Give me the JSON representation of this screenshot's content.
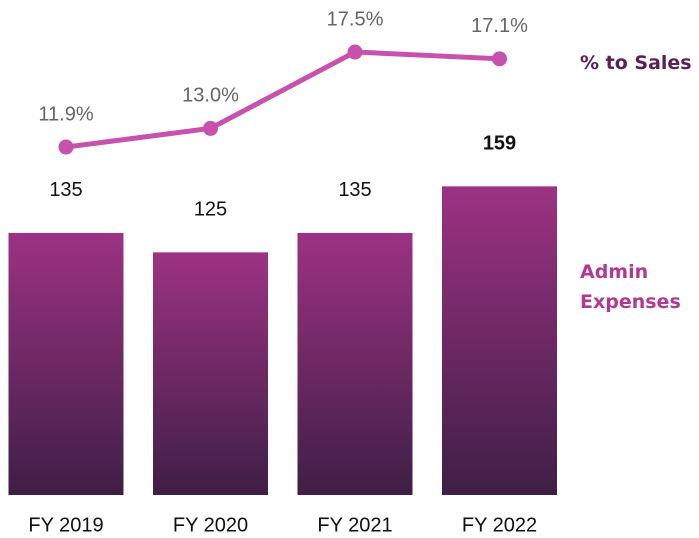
{
  "chart_data": {
    "type": "bar",
    "categories": [
      "FY 2019",
      "FY 2020",
      "FY 2021",
      "FY 2022"
    ],
    "series": [
      {
        "name": "Admin Expenses",
        "type": "bar",
        "color": "#9c3283",
        "values": [
          135,
          125,
          135,
          159
        ]
      },
      {
        "name": "% to Sales",
        "type": "line",
        "axis": "y2",
        "color": "#c652ad",
        "values": [
          11.9,
          13.0,
          17.5,
          17.1
        ],
        "value_labels": [
          "11.9%",
          "13.0%",
          "17.5%",
          "17.1%"
        ]
      }
    ],
    "ylim": [
      0,
      255
    ],
    "y2lim": [
      0,
      20
    ]
  }
}
